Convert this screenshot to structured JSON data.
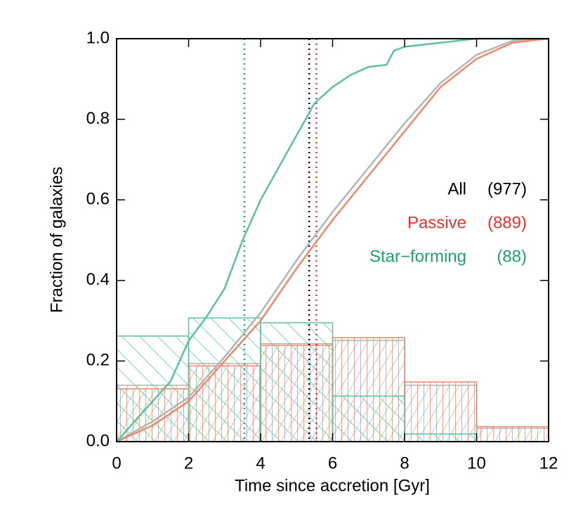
{
  "chart_data": {
    "type": "histogram",
    "x_label": "Time since accretion [Gyr]",
    "y_label": "Fraction of galaxies",
    "bins": [
      0,
      2,
      4,
      6,
      8,
      10,
      12
    ],
    "xlim": [
      0,
      12
    ],
    "ylim": [
      0,
      1
    ],
    "xticks": [
      0,
      2,
      4,
      6,
      8,
      10,
      12
    ],
    "yticks": [
      {
        "value": 0,
        "label": "0.0"
      },
      0.2,
      0.4,
      0.6,
      0.8,
      {
        "value": 1,
        "label": "1.0"
      }
    ],
    "series": [
      {
        "name": "All",
        "count": "(977)",
        "color": "#000000",
        "line_color": "#b4b4b4",
        "values": [
          0.14,
          0.194,
          0.243,
          0.251,
          0.14,
          0.033
        ],
        "median": 5.35,
        "cdf": {
          "x": [
            0,
            1,
            2,
            3,
            4,
            5,
            5.5,
            6,
            7,
            8,
            9,
            10,
            11,
            12
          ],
          "y": [
            0,
            0.05,
            0.11,
            0.21,
            0.32,
            0.45,
            0.51,
            0.57,
            0.68,
            0.79,
            0.89,
            0.96,
            0.995,
            1
          ]
        }
      },
      {
        "name": "Passive",
        "count": "(889)",
        "color": "#e8302c",
        "line_color": "#f0866a",
        "values": [
          0.131,
          0.188,
          0.239,
          0.258,
          0.148,
          0.037
        ],
        "median": 5.55,
        "cdf": {
          "x": [
            0,
            1,
            2,
            3,
            4,
            5,
            5.5,
            6,
            7,
            8,
            9,
            10,
            11,
            12
          ],
          "y": [
            0,
            0.04,
            0.1,
            0.2,
            0.3,
            0.43,
            0.49,
            0.55,
            0.66,
            0.77,
            0.88,
            0.95,
            0.99,
            1
          ]
        }
      },
      {
        "name": "Star−forming",
        "count": "(88)",
        "color": "#20a070",
        "line_color": "#5cc19c",
        "values": [
          0.262,
          0.307,
          0.295,
          0.113,
          0.019,
          0
        ],
        "median": 3.55,
        "cdf": {
          "x": [
            0,
            0.5,
            1,
            1.5,
            2,
            2.5,
            3,
            3.5,
            4,
            4.5,
            5,
            5.5,
            6,
            6.5,
            7,
            7.5,
            7.7,
            8,
            9,
            10,
            11,
            12
          ],
          "y": [
            0,
            0.05,
            0.1,
            0.15,
            0.25,
            0.31,
            0.38,
            0.5,
            0.6,
            0.68,
            0.76,
            0.84,
            0.88,
            0.91,
            0.93,
            0.935,
            0.97,
            0.98,
            0.99,
            1,
            1,
            1
          ]
        }
      }
    ]
  }
}
